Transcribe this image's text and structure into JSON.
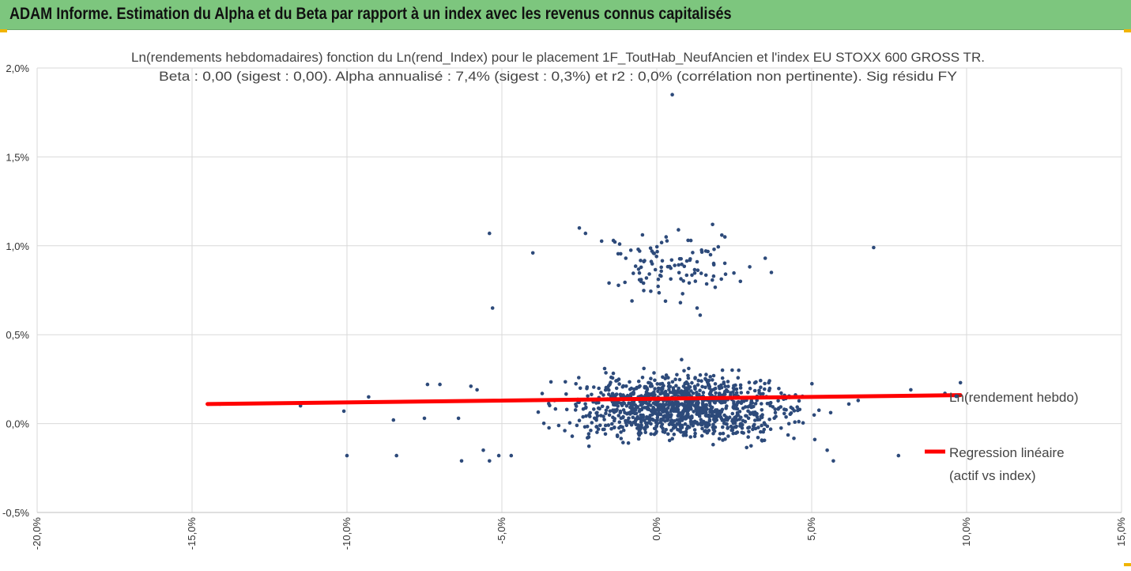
{
  "header": {
    "title": "ADAM Informe. Estimation du Alpha et du Beta par rapport à un index avec les revenus connus capitalisés"
  },
  "colors": {
    "banner": "#7dc67e",
    "accent": "#f0b400",
    "points": "#2d4a7a",
    "regression": "#ff0000",
    "grid": "#d9d9d9"
  },
  "chart_data": {
    "type": "scatter",
    "title_lines": [
      "Ln(rendements hebdomadaires) fonction du Ln(rend_Index) pour le placement 1F_ToutHab_NeufAncien et l'index EU STOXX 600 GROSS TR.",
      "Beta : 0,00 (sigest : 0,00). Alpha annualisé : 7,4% (sigest : 0,3%) et r2 : 0,0% (corrélation non pertinente). Sig résidu FY"
    ],
    "xlim": [
      -0.2,
      0.15
    ],
    "ylim": [
      -0.005,
      0.02
    ],
    "x_ticks": [
      "-20,0%",
      "-15,0%",
      "-10,0%",
      "-5,0%",
      "0,0%",
      "5,0%",
      "10,0%",
      "15,0%"
    ],
    "y_ticks": [
      "-0,5%",
      "0,0%",
      "0,5%",
      "1,0%",
      "1,5%",
      "2,0%"
    ],
    "grid": "vertical and horizontal",
    "legend_placement": "right",
    "series": [
      {
        "name": "Ln(rendement hebdo)",
        "kind": "scatter",
        "points_described": [
          [
            -0.145,
            0.0011
          ],
          [
            -0.141,
            0.0011
          ],
          [
            -0.115,
            0.001
          ],
          [
            -0.101,
            0.0007
          ],
          [
            -0.1,
            -0.0018
          ],
          [
            -0.093,
            0.0015
          ],
          [
            -0.085,
            0.0002
          ],
          [
            -0.084,
            -0.0018
          ],
          [
            -0.075,
            0.0003
          ],
          [
            -0.074,
            0.0022
          ],
          [
            -0.07,
            0.0022
          ],
          [
            -0.064,
            0.0003
          ],
          [
            -0.063,
            -0.0021
          ],
          [
            -0.06,
            0.0021
          ],
          [
            -0.058,
            0.0019
          ],
          [
            -0.056,
            -0.0015
          ],
          [
            -0.054,
            0.0107
          ],
          [
            -0.054,
            -0.0021
          ],
          [
            -0.053,
            0.0065
          ],
          [
            -0.051,
            -0.0018
          ],
          [
            -0.047,
            -0.0018
          ],
          [
            -0.04,
            0.0096
          ],
          [
            -0.025,
            0.011
          ],
          [
            -0.023,
            0.0107
          ],
          [
            -0.014,
            0.0103
          ],
          [
            -0.012,
            0.0101
          ],
          [
            -0.01,
            0.0093
          ],
          [
            -0.008,
            0.0069
          ],
          [
            -0.006,
            0.0098
          ],
          [
            0.003,
            0.0105
          ],
          [
            0.007,
            0.0109
          ],
          [
            0.011,
            0.0103
          ],
          [
            0.013,
            0.0091
          ],
          [
            0.018,
            0.0112
          ],
          [
            0.013,
            0.0065
          ],
          [
            0.014,
            0.0061
          ],
          [
            0.021,
            0.0106
          ],
          [
            0.022,
            0.0105
          ],
          [
            0.027,
            0.008
          ],
          [
            0.035,
            0.0093
          ],
          [
            0.037,
            0.0085
          ],
          [
            0.07,
            0.0099
          ],
          [
            0.005,
            0.0185
          ],
          [
            0.008,
            0.0036
          ],
          [
            0.078,
            -0.0018
          ],
          [
            0.082,
            0.0019
          ],
          [
            0.093,
            0.0017
          ],
          [
            0.098,
            0.0023
          ],
          [
            0.057,
            -0.0021
          ],
          [
            0.055,
            -0.0015
          ],
          [
            0.062,
            0.0011
          ],
          [
            0.065,
            0.0013
          ],
          [
            0.051,
            -0.0009
          ]
        ],
        "main_cluster": "about 1200 weekly points spread over x from about -5,0% to +5,0% and y from about -0,2% to +0,3%, densest around x 0,0% to 2,0%, y 0,1%"
      },
      {
        "name": "Regression linéaire (actif vs index)",
        "kind": "line",
        "x": [
          -0.145,
          0.098
        ],
        "y": [
          0.0011,
          0.0016
        ]
      }
    ],
    "legend": [
      {
        "label_lines": [
          "Ln(rendement hebdo)"
        ],
        "marker": "dot"
      },
      {
        "label_lines": [
          "Regression linéaire",
          "(actif vs index)"
        ],
        "marker": "line"
      }
    ]
  }
}
